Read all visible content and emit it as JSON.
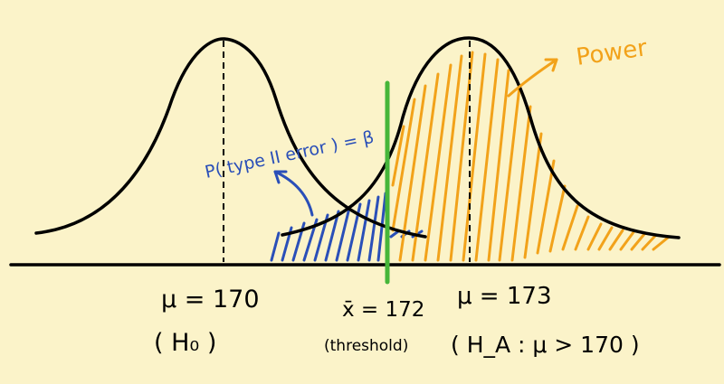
{
  "labels": {
    "mu_null": "μ = 170",
    "h0": "( H₀ )",
    "threshold_value": "x̄ = 172",
    "threshold_word": "(threshold)",
    "mu_alt": "μ = 173",
    "ha": "( H_A : μ > 170 )",
    "type2": "P( type II error ) = β",
    "power": "Power"
  },
  "colors": {
    "background": "#fbf3c9",
    "curve": "#000000",
    "axis": "#000000",
    "beta": "#2a4fb8",
    "power": "#f2a21a",
    "threshold": "#46b63a"
  }
}
